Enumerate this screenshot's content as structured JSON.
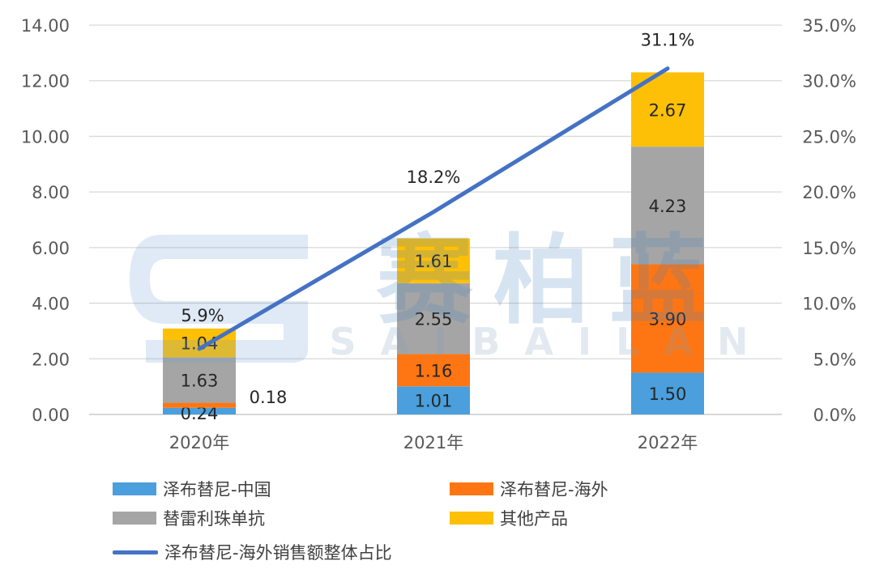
{
  "chart_data": {
    "type": "bar",
    "stacked": true,
    "categories": [
      "2020年",
      "2021年",
      "2022年"
    ],
    "series": [
      {
        "name": "泽布替尼-中国",
        "color": "#4a9fdc",
        "values": [
          0.24,
          1.01,
          1.5
        ],
        "labels": [
          "0.24",
          "1.01",
          "1.50"
        ]
      },
      {
        "name": "泽布替尼-海外",
        "color": "#fd7613",
        "values": [
          0.18,
          1.16,
          3.9
        ],
        "labels": [
          "0.18",
          "1.16",
          "3.90"
        ]
      },
      {
        "name": "替雷利珠单抗",
        "color": "#a5a5a5",
        "values": [
          1.63,
          2.55,
          4.23
        ],
        "labels": [
          "1.63",
          "2.55",
          "4.23"
        ]
      },
      {
        "name": "其他产品",
        "color": "#fec006",
        "values": [
          1.04,
          1.61,
          2.67
        ],
        "labels": [
          "1.04",
          "1.61",
          "2.67"
        ]
      }
    ],
    "line_series": {
      "name": "泽布替尼-海外销售额整体占比",
      "color": "#4472c4",
      "values": [
        5.9,
        18.2,
        31.1
      ],
      "labels": [
        "5.9%",
        "18.2%",
        "31.1%"
      ],
      "axis": "right"
    },
    "ylim": [
      0,
      14
    ],
    "y_ticks": [
      "0.00",
      "2.00",
      "4.00",
      "6.00",
      "8.00",
      "10.00",
      "12.00",
      "14.00"
    ],
    "y2lim": [
      0,
      35
    ],
    "y2_ticks": [
      "0.0%",
      "5.0%",
      "10.0%",
      "15.0%",
      "20.0%",
      "25.0%",
      "30.0%",
      "35.0%"
    ],
    "grid": true,
    "legend_position": "bottom"
  },
  "watermark": {
    "text": "赛柏蓝",
    "subtext": "SAIBAILAN"
  }
}
